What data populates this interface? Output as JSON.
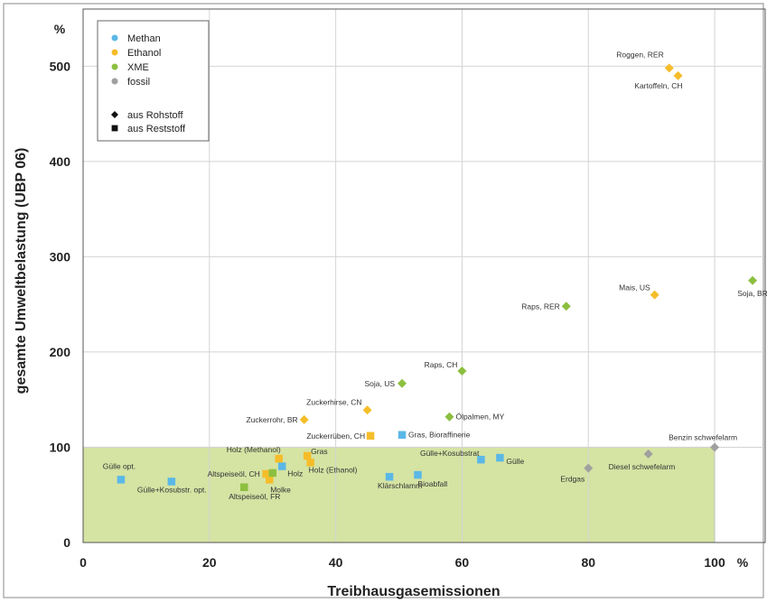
{
  "chart_data": {
    "type": "scatter",
    "title": "",
    "xlabel": "Treibhausgasemissionen",
    "ylabel": "gesamte Umweltbelastung (UBP 06)",
    "x_unit": "%",
    "y_unit": "%",
    "xlim": [
      0,
      108
    ],
    "ylim": [
      0,
      560
    ],
    "xticks": [
      0,
      20,
      40,
      60,
      80,
      100
    ],
    "yticks": [
      0,
      100,
      200,
      300,
      400,
      500
    ],
    "grid": true,
    "legend_position": "top-left",
    "highlight_region": {
      "x": [
        0,
        100
      ],
      "y": [
        0,
        100
      ],
      "color": "#d5e3a3"
    },
    "series": [
      {
        "name": "Methan",
        "color": "#5bb8e6",
        "points": [
          {
            "x": 6,
            "y": 66,
            "label": "Gülle opt.",
            "marker": "square"
          },
          {
            "x": 14,
            "y": 64,
            "label": "Gülle+Kosubstr. opt.",
            "marker": "square"
          },
          {
            "x": 31.5,
            "y": 80,
            "label": "Holz",
            "marker": "square"
          },
          {
            "x": 48.5,
            "y": 69,
            "label": "Klärschlamm",
            "marker": "square"
          },
          {
            "x": 53,
            "y": 71,
            "label": "Bioabfall",
            "marker": "square"
          },
          {
            "x": 63,
            "y": 87,
            "label": "Gülle+Kosubstrat",
            "marker": "square"
          },
          {
            "x": 66,
            "y": 89,
            "label": "Gülle",
            "marker": "square"
          },
          {
            "x": 50.5,
            "y": 113,
            "label": "Gras, Bioraffinerie",
            "marker": "square"
          }
        ]
      },
      {
        "name": "Ethanol",
        "color": "#f5bd2a",
        "points": [
          {
            "x": 92.8,
            "y": 498,
            "label": "Roggen, RER",
            "marker": "diamond"
          },
          {
            "x": 94.2,
            "y": 490,
            "label": "Kartoffeln, CH",
            "marker": "diamond"
          },
          {
            "x": 90.5,
            "y": 260,
            "label": "Mais, US",
            "marker": "diamond"
          },
          {
            "x": 45,
            "y": 139,
            "label": "Zuckerhirse, CN",
            "marker": "diamond"
          },
          {
            "x": 35,
            "y": 129,
            "label": "Zuckerrohr, BR",
            "marker": "diamond"
          },
          {
            "x": 45.5,
            "y": 112,
            "label": "Zuckerrüben, CH",
            "marker": "square"
          },
          {
            "x": 31,
            "y": 88,
            "label": "Holz (Methanol)",
            "marker": "square"
          },
          {
            "x": 35.5,
            "y": 91,
            "label": "Gras",
            "marker": "square"
          },
          {
            "x": 36,
            "y": 84,
            "label": "Holz (Ethanol)",
            "marker": "square"
          },
          {
            "x": 29,
            "y": 72,
            "label": "Altspeiseöl, CH",
            "marker": "square"
          },
          {
            "x": 29.5,
            "y": 66,
            "label": "Molke",
            "marker": "square"
          }
        ]
      },
      {
        "name": "XME",
        "color": "#8cbf3f",
        "points": [
          {
            "x": 106,
            "y": 275,
            "label": "Soja, BR",
            "marker": "diamond"
          },
          {
            "x": 76.5,
            "y": 248,
            "label": "Raps, RER",
            "marker": "diamond"
          },
          {
            "x": 60,
            "y": 180,
            "label": "Raps, CH",
            "marker": "diamond"
          },
          {
            "x": 50.5,
            "y": 167,
            "label": "Soja, US",
            "marker": "diamond"
          },
          {
            "x": 58,
            "y": 132,
            "label": "Ölpalmen, MY",
            "marker": "diamond"
          },
          {
            "x": 30,
            "y": 73,
            "label": "",
            "marker": "square"
          },
          {
            "x": 25.5,
            "y": 58,
            "label": "Altspeiseöl, FR",
            "marker": "square"
          }
        ]
      },
      {
        "name": "fossil",
        "color": "#a0a0a0",
        "points": [
          {
            "x": 100,
            "y": 100,
            "label": "Benzin schwefelarm",
            "marker": "diamond"
          },
          {
            "x": 89.5,
            "y": 93,
            "label": "Diesel schwefelarm",
            "marker": "diamond"
          },
          {
            "x": 80,
            "y": 78,
            "label": "Erdgas",
            "marker": "diamond"
          }
        ]
      }
    ],
    "marker_legend": [
      {
        "shape": "diamond",
        "label": "aus Rohstoff"
      },
      {
        "shape": "square",
        "label": "aus Reststoff"
      }
    ]
  }
}
